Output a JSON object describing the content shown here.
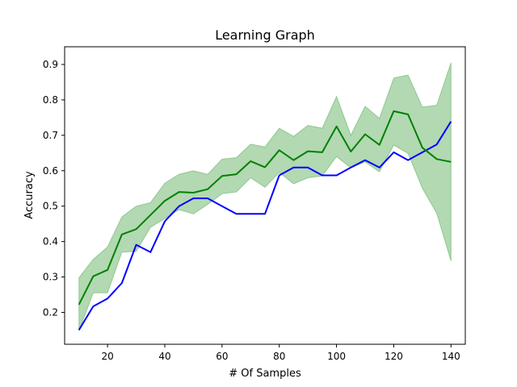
{
  "chart_data": {
    "type": "line",
    "title": "Learning Graph",
    "xlabel": "# Of Samples",
    "ylabel": "Accuracy",
    "xlim": [
      5,
      145
    ],
    "ylim": [
      0.11,
      0.95
    ],
    "xticks": [
      20,
      40,
      60,
      80,
      100,
      120,
      140
    ],
    "yticks": [
      0.2,
      0.3,
      0.4,
      0.5,
      0.6,
      0.7,
      0.8,
      0.9
    ],
    "xtick_labels": [
      "20",
      "40",
      "60",
      "80",
      "100",
      "120",
      "140"
    ],
    "ytick_labels": [
      "0.2",
      "0.3",
      "0.4",
      "0.5",
      "0.6",
      "0.7",
      "0.8",
      "0.9"
    ],
    "grid": false,
    "x": [
      10,
      15,
      20,
      25,
      30,
      35,
      40,
      45,
      50,
      55,
      60,
      65,
      70,
      75,
      80,
      85,
      90,
      95,
      100,
      105,
      110,
      115,
      120,
      125,
      130,
      135,
      140
    ],
    "series": [
      {
        "color": "#0000ff",
        "values": [
          0.15,
          0.217,
          0.239,
          0.283,
          0.391,
          0.37,
          0.457,
          0.5,
          0.522,
          0.522,
          0.5,
          0.478,
          0.478,
          0.478,
          0.587,
          0.609,
          0.609,
          0.587,
          0.587,
          0.609,
          0.63,
          0.609,
          0.652,
          0.63,
          0.652,
          0.674,
          0.739
        ]
      },
      {
        "color": "#008000",
        "values": [
          0.222,
          0.302,
          0.32,
          0.42,
          0.435,
          0.475,
          0.515,
          0.54,
          0.538,
          0.548,
          0.585,
          0.59,
          0.627,
          0.61,
          0.658,
          0.63,
          0.655,
          0.652,
          0.725,
          0.654,
          0.703,
          0.673,
          0.768,
          0.759,
          0.665,
          0.633,
          0.625
        ]
      }
    ],
    "band": {
      "color": "#008000",
      "lower": [
        0.148,
        0.255,
        0.255,
        0.37,
        0.372,
        0.44,
        0.465,
        0.49,
        0.478,
        0.505,
        0.535,
        0.54,
        0.58,
        0.553,
        0.595,
        0.563,
        0.58,
        0.585,
        0.64,
        0.608,
        0.625,
        0.597,
        0.672,
        0.649,
        0.55,
        0.48,
        0.345
      ],
      "upper": [
        0.298,
        0.35,
        0.385,
        0.47,
        0.5,
        0.51,
        0.565,
        0.59,
        0.6,
        0.59,
        0.633,
        0.637,
        0.675,
        0.667,
        0.72,
        0.697,
        0.728,
        0.72,
        0.81,
        0.7,
        0.782,
        0.748,
        0.862,
        0.87,
        0.78,
        0.785,
        0.905
      ]
    }
  }
}
